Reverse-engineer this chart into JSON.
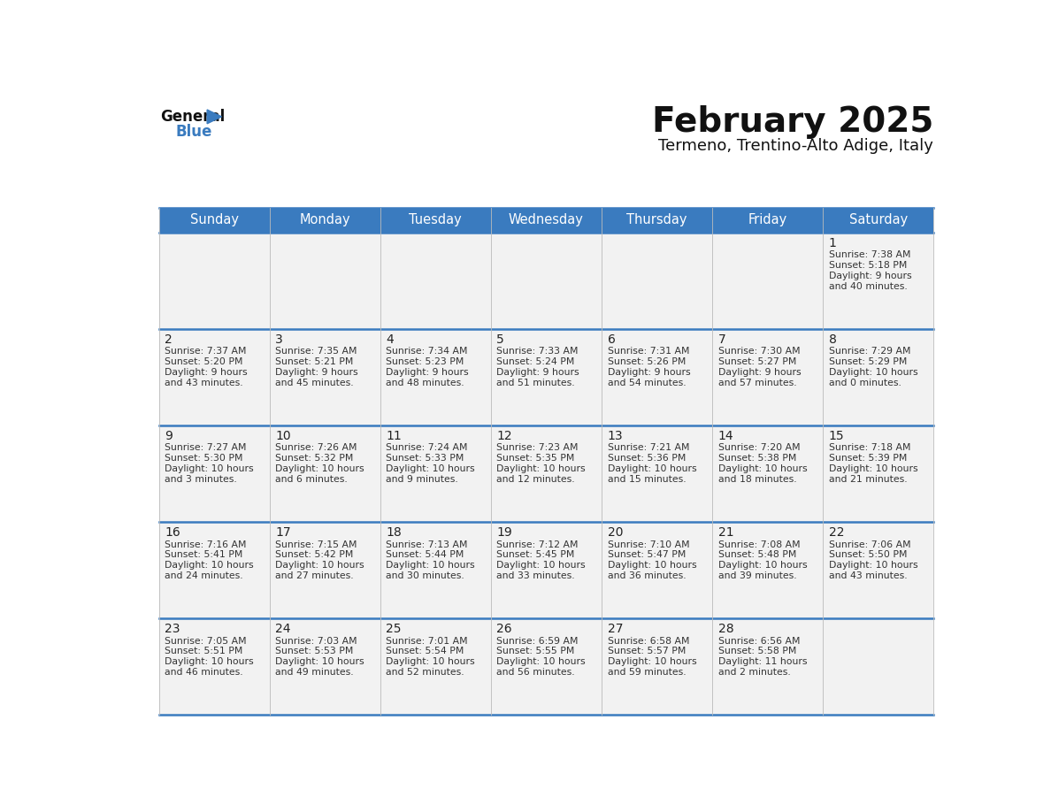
{
  "title": "February 2025",
  "subtitle": "Termeno, Trentino-Alto Adige, Italy",
  "days_of_week": [
    "Sunday",
    "Monday",
    "Tuesday",
    "Wednesday",
    "Thursday",
    "Friday",
    "Saturday"
  ],
  "header_bg": "#3a7bbf",
  "header_text": "#ffffff",
  "cell_bg": "#f2f2f2",
  "border_color": "#3a7bbf",
  "row_border_color": "#3a7bbf",
  "day_num_color": "#222222",
  "text_color": "#333333",
  "title_color": "#111111",
  "subtitle_color": "#111111",
  "logo_general_color": "#111111",
  "logo_blue_color": "#3a7bbf",
  "calendar": [
    [
      null,
      null,
      null,
      null,
      null,
      null,
      {
        "day": 1,
        "sunrise": "7:38 AM",
        "sunset": "5:18 PM",
        "daylight": "9 hours and 40 minutes"
      }
    ],
    [
      {
        "day": 2,
        "sunrise": "7:37 AM",
        "sunset": "5:20 PM",
        "daylight": "9 hours and 43 minutes"
      },
      {
        "day": 3,
        "sunrise": "7:35 AM",
        "sunset": "5:21 PM",
        "daylight": "9 hours and 45 minutes"
      },
      {
        "day": 4,
        "sunrise": "7:34 AM",
        "sunset": "5:23 PM",
        "daylight": "9 hours and 48 minutes"
      },
      {
        "day": 5,
        "sunrise": "7:33 AM",
        "sunset": "5:24 PM",
        "daylight": "9 hours and 51 minutes"
      },
      {
        "day": 6,
        "sunrise": "7:31 AM",
        "sunset": "5:26 PM",
        "daylight": "9 hours and 54 minutes"
      },
      {
        "day": 7,
        "sunrise": "7:30 AM",
        "sunset": "5:27 PM",
        "daylight": "9 hours and 57 minutes"
      },
      {
        "day": 8,
        "sunrise": "7:29 AM",
        "sunset": "5:29 PM",
        "daylight": "10 hours and 0 minutes"
      }
    ],
    [
      {
        "day": 9,
        "sunrise": "7:27 AM",
        "sunset": "5:30 PM",
        "daylight": "10 hours and 3 minutes"
      },
      {
        "day": 10,
        "sunrise": "7:26 AM",
        "sunset": "5:32 PM",
        "daylight": "10 hours and 6 minutes"
      },
      {
        "day": 11,
        "sunrise": "7:24 AM",
        "sunset": "5:33 PM",
        "daylight": "10 hours and 9 minutes"
      },
      {
        "day": 12,
        "sunrise": "7:23 AM",
        "sunset": "5:35 PM",
        "daylight": "10 hours and 12 minutes"
      },
      {
        "day": 13,
        "sunrise": "7:21 AM",
        "sunset": "5:36 PM",
        "daylight": "10 hours and 15 minutes"
      },
      {
        "day": 14,
        "sunrise": "7:20 AM",
        "sunset": "5:38 PM",
        "daylight": "10 hours and 18 minutes"
      },
      {
        "day": 15,
        "sunrise": "7:18 AM",
        "sunset": "5:39 PM",
        "daylight": "10 hours and 21 minutes"
      }
    ],
    [
      {
        "day": 16,
        "sunrise": "7:16 AM",
        "sunset": "5:41 PM",
        "daylight": "10 hours and 24 minutes"
      },
      {
        "day": 17,
        "sunrise": "7:15 AM",
        "sunset": "5:42 PM",
        "daylight": "10 hours and 27 minutes"
      },
      {
        "day": 18,
        "sunrise": "7:13 AM",
        "sunset": "5:44 PM",
        "daylight": "10 hours and 30 minutes"
      },
      {
        "day": 19,
        "sunrise": "7:12 AM",
        "sunset": "5:45 PM",
        "daylight": "10 hours and 33 minutes"
      },
      {
        "day": 20,
        "sunrise": "7:10 AM",
        "sunset": "5:47 PM",
        "daylight": "10 hours and 36 minutes"
      },
      {
        "day": 21,
        "sunrise": "7:08 AM",
        "sunset": "5:48 PM",
        "daylight": "10 hours and 39 minutes"
      },
      {
        "day": 22,
        "sunrise": "7:06 AM",
        "sunset": "5:50 PM",
        "daylight": "10 hours and 43 minutes"
      }
    ],
    [
      {
        "day": 23,
        "sunrise": "7:05 AM",
        "sunset": "5:51 PM",
        "daylight": "10 hours and 46 minutes"
      },
      {
        "day": 24,
        "sunrise": "7:03 AM",
        "sunset": "5:53 PM",
        "daylight": "10 hours and 49 minutes"
      },
      {
        "day": 25,
        "sunrise": "7:01 AM",
        "sunset": "5:54 PM",
        "daylight": "10 hours and 52 minutes"
      },
      {
        "day": 26,
        "sunrise": "6:59 AM",
        "sunset": "5:55 PM",
        "daylight": "10 hours and 56 minutes"
      },
      {
        "day": 27,
        "sunrise": "6:58 AM",
        "sunset": "5:57 PM",
        "daylight": "10 hours and 59 minutes"
      },
      {
        "day": 28,
        "sunrise": "6:56 AM",
        "sunset": "5:58 PM",
        "daylight": "11 hours and 2 minutes"
      },
      null
    ]
  ]
}
